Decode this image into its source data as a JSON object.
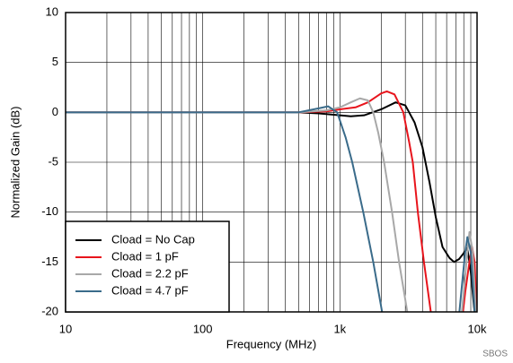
{
  "chart_data": {
    "type": "line",
    "xlabel": "Frequency (MHz)",
    "ylabel": "Normalized Gain (dB)",
    "annotation": "SBOS",
    "xscale": "log",
    "xlim": [
      10,
      10000
    ],
    "ylim": [
      -20,
      10
    ],
    "xticks": [
      {
        "value": 10,
        "label": "10"
      },
      {
        "value": 100,
        "label": "100"
      },
      {
        "value": 1000,
        "label": "1k"
      },
      {
        "value": 10000,
        "label": "10k"
      }
    ],
    "yticks": [
      10,
      5,
      0,
      -5,
      -10,
      -15,
      -20
    ],
    "grid": true,
    "legend": "lower left",
    "series": [
      {
        "name": "Cload = No Cap",
        "color": "#000000",
        "x": [
          10,
          100,
          300,
          500,
          700,
          1000,
          1200,
          1500,
          2000,
          2550,
          3000,
          3500,
          4000,
          4500,
          5000,
          5600,
          6300,
          6800,
          7400,
          7900,
          8500,
          9000,
          9500,
          10000
        ],
        "values": [
          0,
          0,
          0,
          0,
          -0.1,
          -0.3,
          -0.4,
          -0.3,
          0.3,
          1.0,
          0.7,
          -1,
          -3.5,
          -7,
          -10.5,
          -13.5,
          -14.6,
          -15,
          -14.7,
          -14.2,
          -13.6,
          -16,
          -19.5,
          -22
        ]
      },
      {
        "name": "Cload = 1 pF",
        "color": "#e8141c",
        "x": [
          10,
          100,
          300,
          500,
          800,
          1000,
          1300,
          1600,
          2000,
          2200,
          2500,
          2900,
          3200,
          3400,
          3700,
          4100,
          4600,
          5000,
          6000,
          7600,
          8200,
          8800,
          9200,
          9600,
          10000
        ],
        "values": [
          0,
          0,
          0,
          0,
          0.1,
          0.3,
          0.5,
          1.0,
          1.9,
          2.1,
          1.8,
          0,
          -3,
          -5,
          -10,
          -15,
          -20,
          -23,
          null,
          -22,
          -18,
          -15,
          -13.5,
          -15,
          -21
        ]
      },
      {
        "name": "Cload = 2.2 pF",
        "color": "#a8a8a8",
        "x": [
          10,
          100,
          300,
          500,
          800,
          1000,
          1200,
          1400,
          1600,
          1750,
          1900,
          2100,
          2400,
          2700,
          3100,
          3400,
          6000,
          7500,
          8000,
          8500,
          8800,
          9300,
          9800,
          10200
        ],
        "values": [
          0,
          0,
          0,
          0,
          0.2,
          0.5,
          1.0,
          1.4,
          1.2,
          0,
          -2,
          -5,
          -10,
          -15,
          -20,
          -23,
          null,
          -22,
          -18,
          -14,
          -12,
          -14,
          -20,
          -23
        ]
      },
      {
        "name": "Cload = 4.7 pF",
        "color": "#3a6b8a",
        "x": [
          10,
          100,
          300,
          500,
          700,
          822,
          955,
          1100,
          1230,
          1480,
          1750,
          2030,
          2300,
          6000,
          7200,
          7800,
          8200,
          8500,
          9000,
          9600,
          10000
        ],
        "values": [
          0,
          0,
          0,
          0,
          0.4,
          0.6,
          0,
          -2.5,
          -5,
          -10,
          -15,
          -20,
          -24,
          null,
          -22,
          -17,
          -14,
          -12.5,
          -14,
          -20,
          -23
        ]
      }
    ]
  }
}
